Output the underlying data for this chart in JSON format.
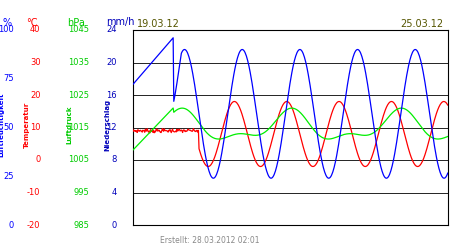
{
  "title_left": "19.03.12",
  "title_right": "25.03.12",
  "footer": "Erstellt: 28.03.2012 02:01",
  "bg_color": "#ffffff",
  "left_labels": {
    "pct_label": "%",
    "pct_color": "#0000ff",
    "temp_label": "°C",
    "temp_color": "#ff0000",
    "hpa_label": "hPa",
    "hpa_color": "#00cc00",
    "mmh_label": "mm/h",
    "mmh_color": "#0000bb"
  },
  "ytick_pct": [
    0,
    25,
    50,
    75,
    100
  ],
  "ytick_temp": [
    -20,
    -10,
    0,
    10,
    20,
    30,
    40
  ],
  "ytick_hpa": [
    985,
    995,
    1005,
    1015,
    1025,
    1035,
    1045
  ],
  "ytick_mmh": [
    0,
    4,
    8,
    12,
    16,
    20,
    24
  ],
  "axis_label_luftfeuchtigkeit": "Luftfeuchtigkeit",
  "axis_label_temperatur": "Temperatur",
  "axis_label_luftdruck": "Luftdruck",
  "axis_label_niederschlag": "Niederschlag",
  "line_blue": "#0000ff",
  "line_red": "#ff0000",
  "line_green": "#00ee00",
  "num_points": 500
}
